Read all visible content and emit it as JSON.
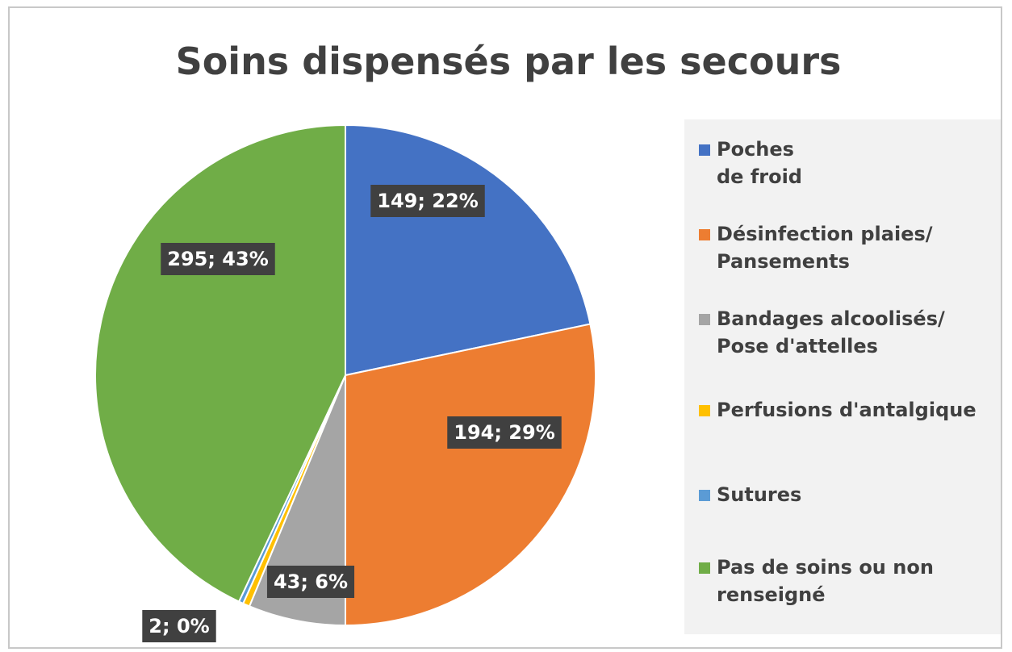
{
  "chart_data": {
    "type": "pie",
    "title": "Soins dispensés par les secours",
    "categories": [
      "Poches\nde froid",
      "Désinfection plaies/\nPansements",
      "Bandages alcoolisés/\nPose d'attelles",
      "Perfusions d'antalgique",
      "Sutures",
      "Pas de soins ou non\nrenseigné"
    ],
    "values": [
      149,
      194,
      43,
      3,
      2,
      295
    ],
    "value_labels": [
      "149; 22%",
      "194; 29%",
      "43; 6%",
      null,
      "2; 0%",
      "295; 43%"
    ],
    "colors": [
      "#4472c4",
      "#ed7d31",
      "#a5a5a5",
      "#ffc000",
      "#5b9bd5",
      "#70ad47"
    ],
    "legend": "right"
  }
}
